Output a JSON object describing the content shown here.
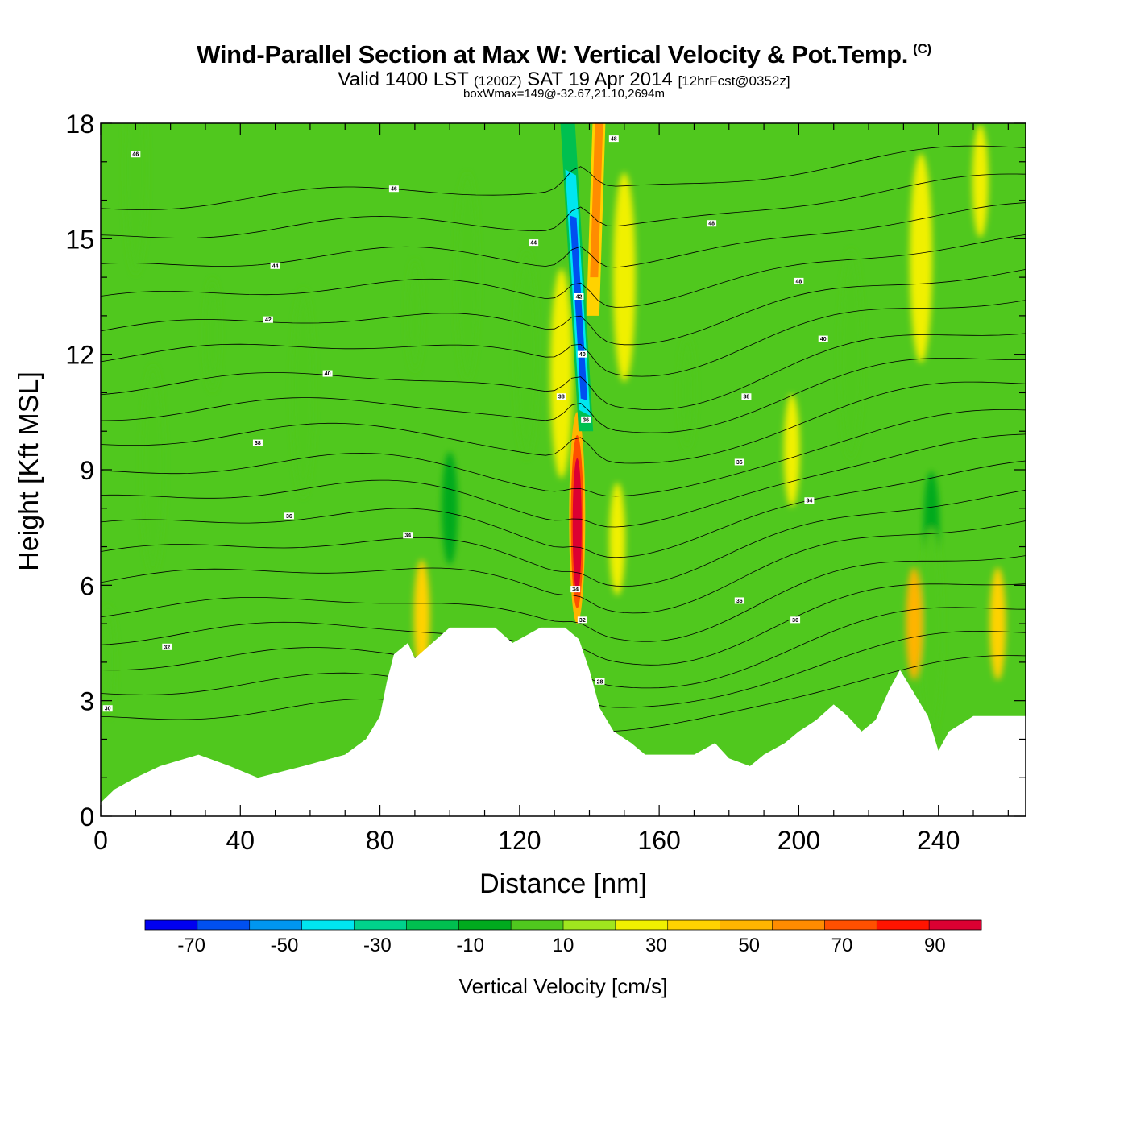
{
  "chart_data": {
    "type": "heatmap",
    "title": "Wind-Parallel Section at Max W: Vertical Velocity & Pot.Temp.",
    "title_suffix": "(C)",
    "subtitle_a": "Valid 1400 LST",
    "subtitle_b": "(1200Z)",
    "subtitle_c": "SAT 19 Apr 2014",
    "subtitle_d": "[12hrFcst@0352z]",
    "info_line": "boxWmax=149@-32.67,21.10,2694m",
    "xlabel": "Distance [nm]",
    "ylabel": "Height [Kft MSL]",
    "xlim": [
      0,
      265
    ],
    "ylim": [
      0,
      18
    ],
    "x_ticks": [
      "0",
      "40",
      "80",
      "120",
      "160",
      "200",
      "240"
    ],
    "y_ticks": [
      "0",
      "3",
      "6",
      "9",
      "12",
      "15",
      "18"
    ],
    "colorbar": {
      "label": "Vertical Velocity [cm/s]",
      "min": -80,
      "max": 100,
      "step": 10,
      "tick_labels": [
        "-70",
        "-50",
        "-30",
        "-10",
        "10",
        "30",
        "50",
        "70",
        "90"
      ],
      "colors": [
        "#0000f0",
        "#0050f0",
        "#0096f0",
        "#00e6f0",
        "#00d28c",
        "#00c050",
        "#00aa1e",
        "#50c81e",
        "#a0e61e",
        "#f0f000",
        "#ffd200",
        "#ffb400",
        "#ff8c00",
        "#ff5000",
        "#ff1400",
        "#dc0032"
      ]
    },
    "background_w": "#50c81e",
    "w_features": [
      {
        "x": 10,
        "y": 16.8,
        "w": -5
      },
      {
        "x": 2,
        "y": 4.0,
        "w": -5
      },
      {
        "x": 15,
        "y": 9.0,
        "w": -5
      },
      {
        "x": 32,
        "y": 12.5,
        "w": -5
      },
      {
        "x": 58,
        "y": 11.0,
        "w": -5
      },
      {
        "x": 90,
        "y": 13.0,
        "w": -5
      },
      {
        "x": 105,
        "y": 14.0,
        "w": -5
      },
      {
        "x": 100,
        "y": 8.0,
        "w": -15
      },
      {
        "x": 122,
        "y": 12.0,
        "w": -5
      },
      {
        "x": 168,
        "y": 11.0,
        "w": -5
      },
      {
        "x": 215,
        "y": 12.0,
        "w": -5
      },
      {
        "x": 238,
        "y": 7.5,
        "w": -15
      },
      {
        "x": 238,
        "y": 4.8,
        "w": -5
      },
      {
        "x": 92,
        "y": 5.2,
        "w": 25
      },
      {
        "x": 233,
        "y": 5.0,
        "w": 35
      },
      {
        "x": 257,
        "y": 5.0,
        "w": 25
      },
      {
        "x": 150,
        "y": 14.0,
        "w": 15
      },
      {
        "x": 148,
        "y": 7.2,
        "w": 15
      },
      {
        "x": 132,
        "y": 11.5,
        "w": 15
      },
      {
        "x": 198,
        "y": 9.5,
        "w": 15
      },
      {
        "x": 235,
        "y": 14.5,
        "w": 15
      },
      {
        "x": 252,
        "y": 16.5,
        "w": 15
      }
    ],
    "updraft": {
      "w": [
        35,
        55,
        75,
        95
      ],
      "y_range": [
        5.0,
        10.5
      ]
    },
    "downdraft": {
      "w": [
        -25,
        -45,
        -65
      ],
      "y_range": [
        10.0,
        18.0
      ]
    },
    "upper_updraft": {
      "w": [
        25,
        45
      ],
      "y_range": [
        13.0,
        18.0
      ]
    },
    "terrain": [
      [
        0,
        0.35
      ],
      [
        4,
        0.7
      ],
      [
        10,
        1.0
      ],
      [
        17,
        1.3
      ],
      [
        28,
        1.6
      ],
      [
        37,
        1.3
      ],
      [
        45,
        1.0
      ],
      [
        58,
        1.3
      ],
      [
        70,
        1.6
      ],
      [
        76,
        2.0
      ],
      [
        80,
        2.6
      ],
      [
        82,
        3.5
      ],
      [
        84,
        4.2
      ],
      [
        88,
        4.5
      ],
      [
        90,
        4.1
      ],
      [
        95,
        4.5
      ],
      [
        100,
        4.9
      ],
      [
        113,
        4.9
      ],
      [
        118,
        4.5
      ],
      [
        126,
        4.9
      ],
      [
        133,
        4.9
      ],
      [
        137,
        4.6
      ],
      [
        140,
        3.8
      ],
      [
        143,
        2.8
      ],
      [
        147,
        2.2
      ],
      [
        152,
        1.9
      ],
      [
        156,
        1.6
      ],
      [
        170,
        1.6
      ],
      [
        176,
        1.9
      ],
      [
        180,
        1.5
      ],
      [
        186,
        1.3
      ],
      [
        190,
        1.6
      ],
      [
        196,
        1.9
      ],
      [
        200,
        2.2
      ],
      [
        205,
        2.5
      ],
      [
        210,
        2.9
      ],
      [
        214,
        2.6
      ],
      [
        218,
        2.2
      ],
      [
        222,
        2.5
      ],
      [
        226,
        3.3
      ],
      [
        229,
        3.8
      ],
      [
        233,
        3.2
      ],
      [
        237,
        2.6
      ],
      [
        240,
        1.7
      ],
      [
        243,
        2.2
      ],
      [
        250,
        2.6
      ],
      [
        265,
        2.6
      ]
    ],
    "theta_contours": [
      {
        "level": "30",
        "y0": 2.5,
        "dip": 0.8
      },
      {
        "level": "32",
        "y0": 3.2,
        "dip": 0.9
      },
      {
        "level": "33",
        "y0": 3.9,
        "dip": 1.0
      },
      {
        "level": "34",
        "y0": 4.6,
        "dip": 1.0
      },
      {
        "level": "35",
        "y0": 5.3,
        "dip": 1.0
      },
      {
        "level": "36",
        "y0": 6.1,
        "dip": 1.0
      },
      {
        "level": "37",
        "y0": 6.8,
        "dip": 1.0
      },
      {
        "level": "38",
        "y0": 7.5,
        "dip": 1.0
      },
      {
        "level": "39",
        "y0": 8.2,
        "dip": 1.0
      },
      {
        "level": "40",
        "y0": 8.9,
        "dip": 1.0
      },
      {
        "level": "41",
        "y0": 9.7,
        "dip": 1.0
      },
      {
        "level": "42",
        "y0": 10.4,
        "dip": 0.9
      },
      {
        "level": "43",
        "y0": 11.1,
        "dip": 0.9
      },
      {
        "level": "44",
        "y0": 11.9,
        "dip": 0.8
      },
      {
        "level": "45",
        "y0": 12.6,
        "dip": 0.7
      },
      {
        "level": "46",
        "y0": 13.4,
        "dip": 0.6
      },
      {
        "level": "47",
        "y0": 14.2,
        "dip": 0.5
      },
      {
        "level": "48",
        "y0": 15.0,
        "dip": 0.4
      },
      {
        "level": "49",
        "y0": 15.8,
        "dip": 0.3
      }
    ],
    "contour_labels": [
      {
        "x": 10,
        "y": 17.2,
        "text": "46"
      },
      {
        "x": 84,
        "y": 16.3,
        "text": "46"
      },
      {
        "x": 124,
        "y": 14.9,
        "text": "44"
      },
      {
        "x": 50,
        "y": 14.3,
        "text": "44"
      },
      {
        "x": 48,
        "y": 12.9,
        "text": "42"
      },
      {
        "x": 65,
        "y": 11.5,
        "text": "40"
      },
      {
        "x": 45,
        "y": 9.7,
        "text": "38"
      },
      {
        "x": 54,
        "y": 7.8,
        "text": "36"
      },
      {
        "x": 88,
        "y": 7.3,
        "text": "34"
      },
      {
        "x": 19,
        "y": 4.4,
        "text": "32"
      },
      {
        "x": 2,
        "y": 2.8,
        "text": "30"
      },
      {
        "x": 147,
        "y": 17.6,
        "text": "48"
      },
      {
        "x": 175,
        "y": 15.4,
        "text": "48"
      },
      {
        "x": 200,
        "y": 13.9,
        "text": "48"
      },
      {
        "x": 207,
        "y": 12.4,
        "text": "40"
      },
      {
        "x": 185,
        "y": 10.9,
        "text": "38"
      },
      {
        "x": 183,
        "y": 9.2,
        "text": "36"
      },
      {
        "x": 203,
        "y": 8.2,
        "text": "34"
      },
      {
        "x": 183,
        "y": 5.6,
        "text": "36"
      },
      {
        "x": 199,
        "y": 5.1,
        "text": "30"
      },
      {
        "x": 137,
        "y": 13.5,
        "text": "42"
      },
      {
        "x": 138,
        "y": 12.0,
        "text": "40"
      },
      {
        "x": 132,
        "y": 10.9,
        "text": "38"
      },
      {
        "x": 139,
        "y": 10.3,
        "text": "36"
      },
      {
        "x": 136,
        "y": 5.9,
        "text": "34"
      },
      {
        "x": 138,
        "y": 5.1,
        "text": "32"
      },
      {
        "x": 143,
        "y": 3.5,
        "text": "28"
      }
    ]
  }
}
